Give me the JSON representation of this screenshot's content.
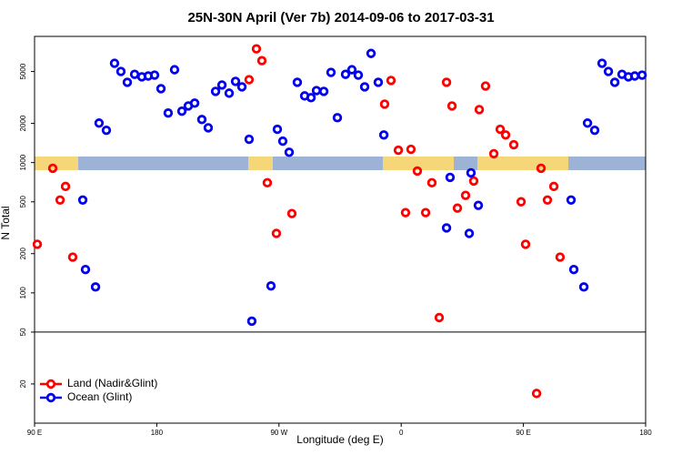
{
  "chart_data": {
    "type": "scatter",
    "title": "25N-30N April (Ver 7b)   2014-09-06 to 2017-03-31",
    "x_label": "Longitude (deg E)",
    "y_label": "N Total",
    "log_y": true,
    "legend": "bottom-left",
    "hline": 50,
    "xlim": [
      90,
      540
    ],
    "xticks": [
      {
        "value": 90,
        "label": "90 E"
      },
      180,
      {
        "value": 270,
        "label": "90 W"
      },
      {
        "value": 360,
        "label": "0"
      },
      {
        "value": 450,
        "label": "90 E"
      },
      {
        "value": 540,
        "label": "180"
      }
    ],
    "ylim": [
      10,
      9300
    ],
    "yticks": [
      20,
      50,
      100,
      200,
      500,
      1000,
      2000,
      5000
    ],
    "series": [
      {
        "name": "Land (Nadir&Glint)",
        "color": "#ff0000",
        "x": [
          92,
          103.4,
          108.8,
          112.8,
          118.1,
          248,
          253.4,
          257.4,
          261.4,
          268.1,
          279.5,
          352.5,
          347.8,
          357.9,
          367.2,
          363.2,
          371.9,
          378,
          382.6,
          388,
          393.4,
          397.4,
          401.4,
          407.4,
          413.4,
          417.5,
          422.1,
          428.2,
          432.9,
          436.9,
          442.9,
          448.3,
          451.6,
          459.7,
          463,
          467.7,
          472.4,
          477
        ],
        "values": [
          236,
          904,
          516,
          656,
          188,
          4330,
          7460,
          6050,
          700,
          286,
          406,
          4270,
          2810,
          1245,
          1265,
          413,
          861,
          413,
          700,
          64.6,
          4130,
          2720,
          447,
          560,
          722,
          2550,
          3870,
          1170,
          1800,
          1630,
          1370,
          500,
          236,
          16.9,
          904,
          516,
          656,
          188
        ]
      },
      {
        "name": "Ocean (Glint)",
        "color": "#0000ee",
        "x": [
          125.5,
          127.5,
          134.9,
          137.5,
          142.9,
          148.9,
          153.6,
          158.3,
          163.7,
          169,
          173.7,
          178.4,
          183.1,
          188.4,
          193.1,
          198.5,
          203.2,
          207.9,
          213.2,
          217.9,
          223.3,
          228,
          233.3,
          238,
          242.7,
          248,
          250,
          264.1,
          268.8,
          272.8,
          277.5,
          283.5,
          288.9,
          293.6,
          297.6,
          303,
          308.3,
          313,
          319,
          323.7,
          328.4,
          333.1,
          337.8,
          343.1,
          347.2,
          393.4,
          396,
          410.1,
          411.4,
          416.8,
          485.1,
          487.1,
          494.5,
          497.2,
          502.5,
          507.9,
          512.6,
          517.3,
          522.6,
          527.3,
          532,
          537.4
        ],
        "values": [
          516,
          151,
          111,
          2010,
          1770,
          5780,
          5000,
          4130,
          4760,
          4550,
          4620,
          4690,
          3690,
          2400,
          5160,
          2480,
          2720,
          2860,
          2140,
          1850,
          3520,
          3940,
          3410,
          4200,
          3810,
          1510,
          60.6,
          113,
          1800,
          1460,
          1200,
          4130,
          3250,
          3150,
          3570,
          3520,
          4920,
          2210,
          4760,
          5160,
          4690,
          3810,
          6880,
          4130,
          1630,
          315,
          770,
          286,
          834,
          469,
          516,
          151,
          111,
          2010,
          1770,
          5780,
          5000,
          4130,
          4760,
          4550,
          4620,
          4690
        ]
      }
    ]
  }
}
